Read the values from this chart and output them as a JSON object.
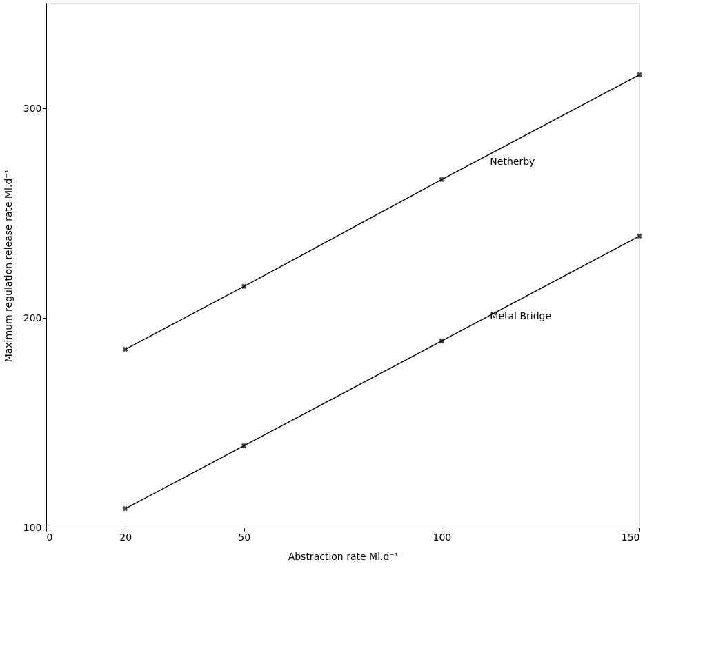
{
  "chart_data": {
    "type": "line",
    "xlabel": "Abstraction rate Ml.d⁻¹",
    "ylabel": "Maximum regulation release rate Ml.d⁻¹",
    "x": [
      20,
      50,
      100,
      150
    ],
    "series": [
      {
        "name": "Netherby",
        "color": "#000000",
        "values": [
          185,
          215,
          266,
          316
        ]
      },
      {
        "name": "Metal Bridge",
        "color": "#000000",
        "values": [
          109,
          139,
          189,
          239
        ]
      }
    ],
    "xlim": [
      0,
      150
    ],
    "xticks": [
      0,
      20,
      50,
      100,
      150
    ],
    "ylim": [
      100,
      350
    ],
    "yticks": [
      100,
      200,
      300
    ],
    "marker": "cross",
    "line_style": "solid"
  }
}
